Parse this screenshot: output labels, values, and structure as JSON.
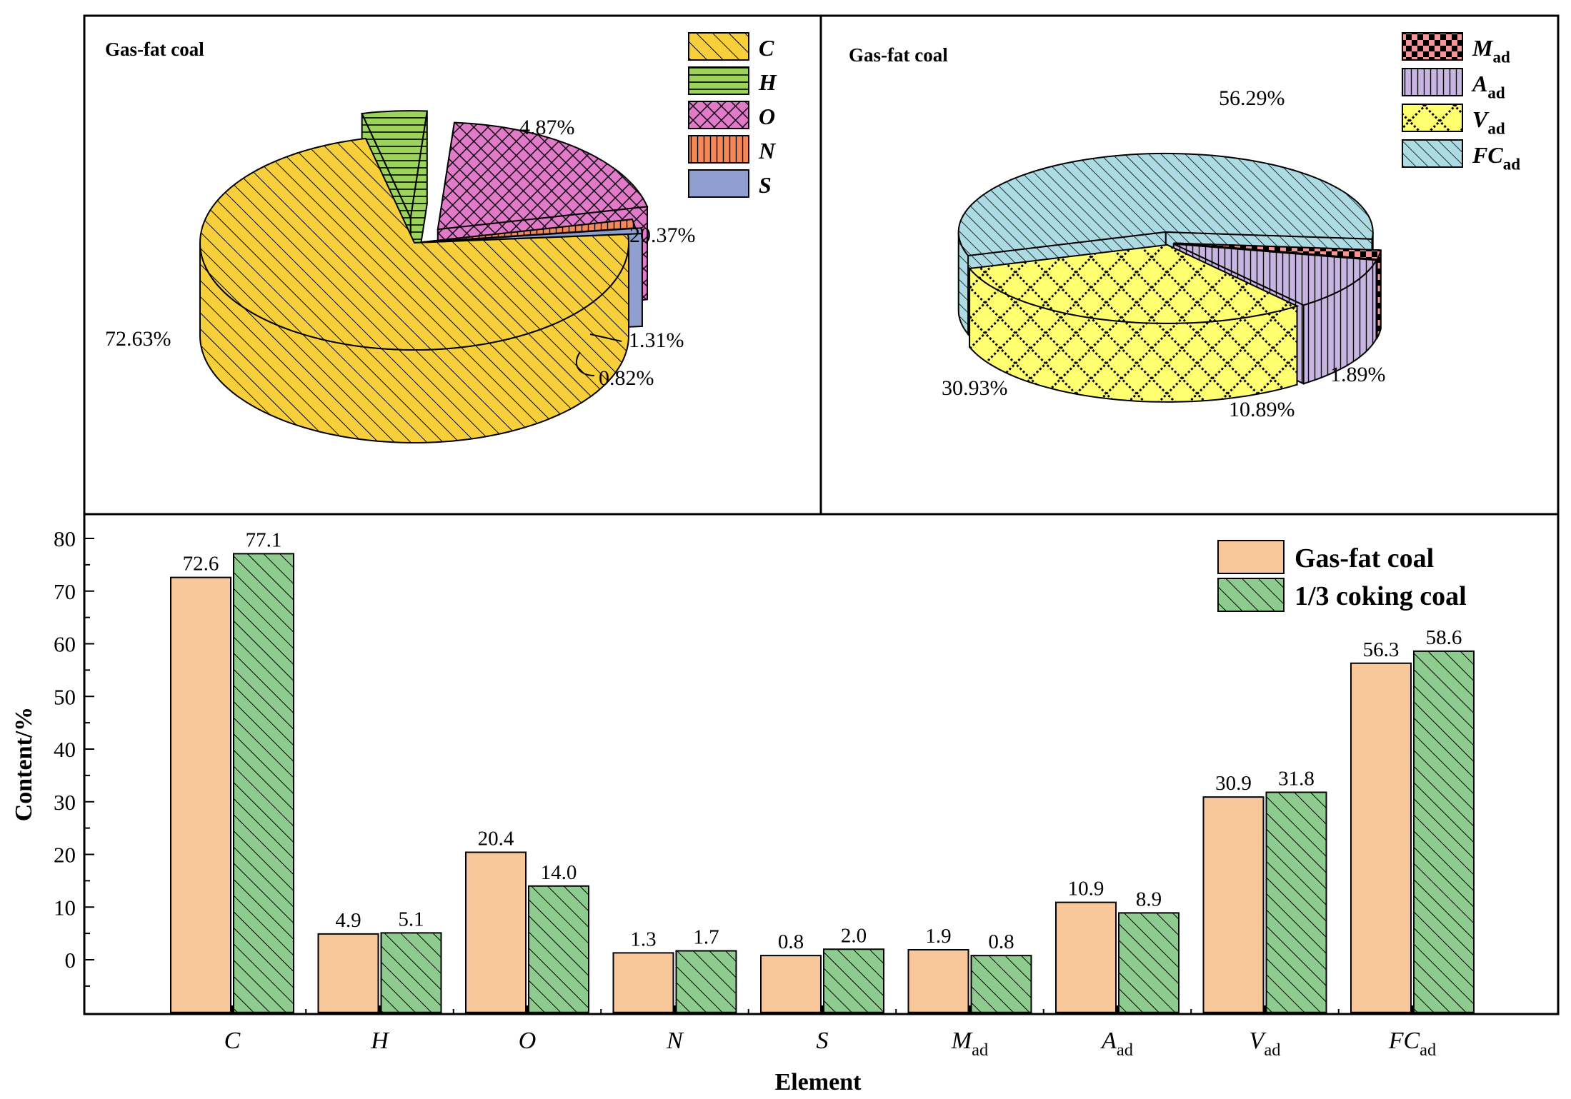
{
  "colors": {
    "gas_fat": "#f8c89a",
    "coking": "#8ecb8e",
    "C": "#f7cf3a",
    "H": "#9cd35a",
    "O": "#e07ac9",
    "N": "#f3885a",
    "S": "#8f9fd0",
    "M_ad": "#f59595",
    "A_ad": "#c8b4e0",
    "V_ad": "#ffff70",
    "FC_ad": "#acdbe4"
  },
  "chart_data": [
    {
      "type": "pie",
      "title": "Gas-fat coal",
      "legend_position": "top-right",
      "slices": [
        {
          "key": "C",
          "label": "C",
          "value": 72.63,
          "label_text": "72.63%"
        },
        {
          "key": "H",
          "label": "H",
          "value": 4.87,
          "label_text": "4.87%"
        },
        {
          "key": "O",
          "label": "O",
          "value": 20.37,
          "label_text": "20.37%"
        },
        {
          "key": "N",
          "label": "N",
          "value": 1.31,
          "label_text": "1.31%"
        },
        {
          "key": "S",
          "label": "S",
          "value": 0.82,
          "label_text": "0.82%"
        }
      ]
    },
    {
      "type": "pie",
      "title": "Gas-fat coal",
      "legend_position": "top-right",
      "slices": [
        {
          "key": "M_ad",
          "label": "M",
          "sub": "ad",
          "value": 1.89,
          "label_text": "1.89%"
        },
        {
          "key": "A_ad",
          "label": "A",
          "sub": "ad",
          "value": 10.89,
          "label_text": "10.89%"
        },
        {
          "key": "V_ad",
          "label": "V",
          "sub": "ad",
          "value": 30.93,
          "label_text": "30.93%"
        },
        {
          "key": "FC_ad",
          "label": "FC",
          "sub": "ad",
          "value": 56.29,
          "label_text": "56.29%"
        }
      ]
    },
    {
      "type": "bar",
      "xlabel": "Element",
      "ylabel": "Content/%",
      "ylim": [
        -10,
        82
      ],
      "yticks": [
        0,
        10,
        20,
        30,
        40,
        50,
        60,
        70,
        80
      ],
      "legend_position": "top-right",
      "categories": [
        {
          "label": "C",
          "sub": ""
        },
        {
          "label": "H",
          "sub": ""
        },
        {
          "label": "O",
          "sub": ""
        },
        {
          "label": "N",
          "sub": ""
        },
        {
          "label": "S",
          "sub": ""
        },
        {
          "label": "M",
          "sub": "ad"
        },
        {
          "label": "A",
          "sub": "ad"
        },
        {
          "label": "V",
          "sub": "ad"
        },
        {
          "label": "FC",
          "sub": "ad"
        }
      ],
      "series": [
        {
          "name": "Gas-fat coal",
          "key": "gas_fat",
          "values": [
            72.6,
            4.9,
            20.4,
            1.3,
            0.8,
            1.9,
            10.9,
            30.9,
            56.3
          ],
          "labels": [
            "72.6",
            "4.9",
            "20.4",
            "1.3",
            "0.8",
            "1.9",
            "10.9",
            "30.9",
            "56.3"
          ]
        },
        {
          "name": "1/3 coking coal",
          "key": "coking",
          "values": [
            77.1,
            5.1,
            14.0,
            1.7,
            2.0,
            0.8,
            8.9,
            31.8,
            58.6
          ],
          "labels": [
            "77.1",
            "5.1",
            "14.0",
            "1.7",
            "2.0",
            "0.8",
            "8.9",
            "31.8",
            "58.6"
          ]
        }
      ]
    }
  ]
}
